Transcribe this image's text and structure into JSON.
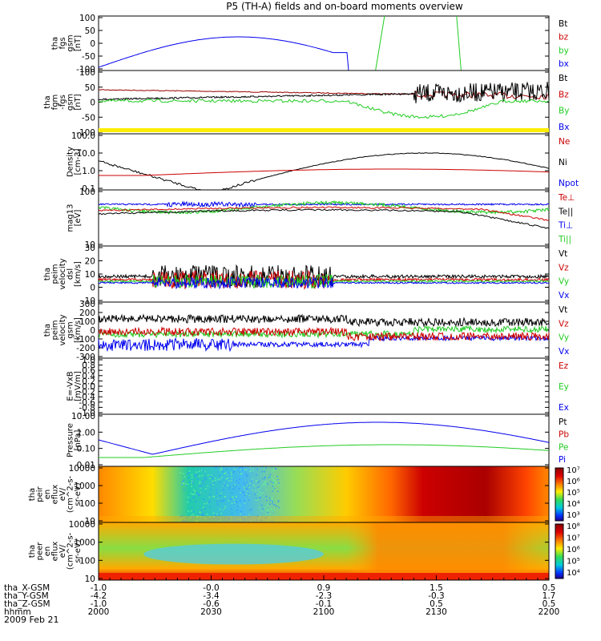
{
  "title": "P5 (TH-A) fields and on-board moments overview",
  "date_label": "2009 Feb 21",
  "colors": {
    "black": "#000000",
    "red": "#cc0000",
    "green": "#22cc22",
    "blue": "#0000ee",
    "dred": "#990000",
    "yellow": "#ffee00"
  },
  "chart_data": {
    "type": "line",
    "time_axis": {
      "rows": [
        {
          "label": "tha_X-GSM",
          "values": [
            "-1.0",
            "-0.0",
            "0.9",
            "1.5",
            "0.5"
          ]
        },
        {
          "label": "tha_Y-GSM",
          "values": [
            "-4.2",
            "-3.4",
            "-2.3",
            "-0.3",
            "1.7"
          ]
        },
        {
          "label": "tha_Z-GSM",
          "values": [
            "-1.0",
            "-0.6",
            "-0.1",
            "0.5",
            "0.5"
          ]
        },
        {
          "label": "hhmm",
          "values": [
            "2000",
            "2030",
            "2100",
            "2130",
            "2200"
          ]
        }
      ]
    },
    "panels": [
      {
        "ylabel": [
          "tha",
          "fgs",
          "gsm",
          "[nT]"
        ],
        "ticks": [
          "100",
          "50",
          "0",
          "-50",
          "-100"
        ],
        "legend": [
          {
            "text": "Bt",
            "color": "#000000"
          },
          {
            "text": "bz",
            "color": "#cc0000"
          },
          {
            "text": "by",
            "color": "#22cc22"
          },
          {
            "text": "bx",
            "color": "#0000ee"
          }
        ]
      },
      {
        "ylabel": [
          "tha",
          "fgm",
          "-fgs",
          "gsm",
          "[nT]"
        ],
        "ticks": [
          "100",
          "50",
          "0",
          "-50",
          "-100"
        ],
        "legend": [
          {
            "text": "Bt",
            "color": "#000000"
          },
          {
            "text": "Bz",
            "color": "#cc0000"
          },
          {
            "text": "By",
            "color": "#22cc22"
          },
          {
            "text": "Bx",
            "color": "#0000ee"
          }
        ]
      },
      {
        "ylabel": [
          "Density",
          "[cm-3]"
        ],
        "ticks": [
          "100.0",
          "10.0",
          "1.0",
          "0.1"
        ],
        "legend": [
          {
            "text": "Ne",
            "color": "#cc0000"
          },
          {
            "text": "Ni",
            "color": "#000000"
          },
          {
            "text": "Npot",
            "color": "#0000ee"
          }
        ]
      },
      {
        "ylabel": [
          "mag13",
          "[eV]"
        ],
        "ticks": [
          "100",
          "10"
        ],
        "legend": [
          {
            "text": "Te⊥",
            "color": "#cc0000"
          },
          {
            "text": "Te||",
            "color": "#000000"
          },
          {
            "text": "Ti⊥",
            "color": "#0000ee"
          },
          {
            "text": "Ti||",
            "color": "#22cc22"
          }
        ]
      },
      {
        "ylabel": [
          "tha",
          "peim",
          "velocity",
          "dsl",
          "[km/s]"
        ],
        "ticks": [
          "30",
          "20",
          "10",
          "0",
          "-10"
        ],
        "legend": [
          {
            "text": "Vt",
            "color": "#000000"
          },
          {
            "text": "Vz",
            "color": "#cc0000"
          },
          {
            "text": "Vy",
            "color": "#22cc22"
          },
          {
            "text": "Vx",
            "color": "#0000ee"
          }
        ]
      },
      {
        "ylabel": [
          "tha",
          "peim",
          "velocity",
          "gsm",
          "[km/s]"
        ],
        "ticks": [
          "300",
          "200",
          "100",
          "0",
          "-100",
          "-200",
          "-300"
        ],
        "legend": [
          {
            "text": "Vt",
            "color": "#000000"
          },
          {
            "text": "Vz",
            "color": "#cc0000"
          },
          {
            "text": "Vy",
            "color": "#22cc22"
          },
          {
            "text": "Vx",
            "color": "#0000ee"
          }
        ]
      },
      {
        "ylabel": [
          "E=-VxB",
          "[mV/m]"
        ],
        "ticks": [
          "1.0",
          "0.8",
          "0.6",
          "0.4",
          "0.2",
          "0.0",
          "-0.2",
          "-0.4",
          "-0.6",
          "-0.8",
          "-1.0"
        ],
        "legend": [
          {
            "text": "Ez",
            "color": "#cc0000"
          },
          {
            "text": "Ey",
            "color": "#22cc22"
          },
          {
            "text": "Ex",
            "color": "#0000ee"
          }
        ]
      },
      {
        "ylabel": [
          "Pressure",
          "[nPa]"
        ],
        "ticks": [
          "10.00",
          "1.00",
          "0.10",
          "0.01"
        ],
        "legend": [
          {
            "text": "Pt",
            "color": "#000000"
          },
          {
            "text": "Pb",
            "color": "#cc0000"
          },
          {
            "text": "Pe",
            "color": "#22cc22"
          },
          {
            "text": "Pi",
            "color": "#0000ee"
          }
        ]
      },
      {
        "ylabel": [
          "tha",
          "peir",
          "en",
          "eflux",
          "eV/",
          "(cm^2-s-",
          "sr-eV)"
        ],
        "ticks": [
          "10000",
          "1000",
          "100",
          "10"
        ],
        "colorbar": [
          "10⁷",
          "10⁶",
          "10⁵",
          "10⁴",
          "10³"
        ]
      },
      {
        "ylabel": [
          "tha",
          "peer",
          "en",
          "eflux",
          "eV/",
          "(cm^2-s-",
          "sr-eV)"
        ],
        "ticks": [
          "10000",
          "1000",
          "100",
          "10"
        ],
        "colorbar": [
          "10⁸",
          "10⁷",
          "10⁶",
          "10⁵",
          "10⁴"
        ]
      }
    ]
  }
}
